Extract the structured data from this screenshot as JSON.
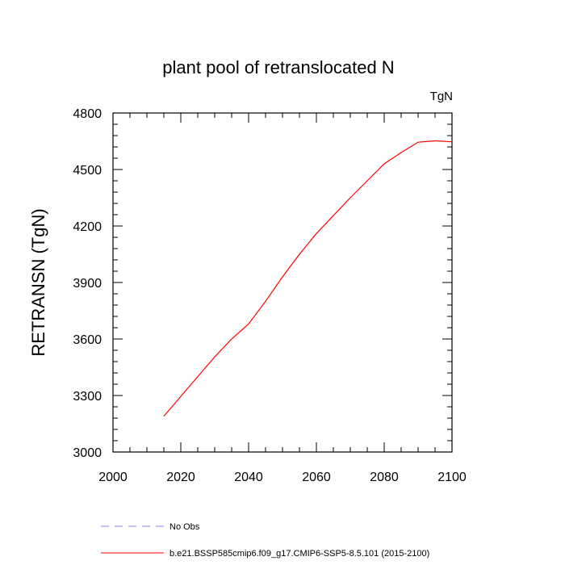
{
  "chart_data": {
    "type": "line",
    "title": "plant pool of retranslocated N",
    "units_label": "TgN",
    "ylabel": "RETRANSN  (TgN)",
    "xlabel": "",
    "xlim": [
      2000,
      2100
    ],
    "ylim": [
      3000,
      4800
    ],
    "x_ticks": [
      2000,
      2020,
      2040,
      2060,
      2080,
      2100
    ],
    "y_ticks": [
      3000,
      3300,
      3600,
      3900,
      4200,
      4500,
      4800
    ],
    "grid": false,
    "legend_position": "bottom-left, below plot",
    "series": [
      {
        "name": "No Obs",
        "color": "#8080ff",
        "dash": "dashed",
        "x": [],
        "y": []
      },
      {
        "name": "b.e21.BSSP585cmip6.f09_g17.CMIP6-SSP5-8.5.101 (2015-2100)",
        "color": "#ff0000",
        "dash": "solid",
        "x": [
          2015,
          2020,
          2025,
          2030,
          2035,
          2040,
          2045,
          2050,
          2055,
          2060,
          2065,
          2070,
          2075,
          2080,
          2085,
          2090,
          2095,
          2100
        ],
        "y": [
          3190,
          3295,
          3400,
          3505,
          3600,
          3680,
          3800,
          3930,
          4050,
          4160,
          4255,
          4350,
          4440,
          4530,
          4590,
          4645,
          4652,
          4647
        ]
      }
    ]
  }
}
